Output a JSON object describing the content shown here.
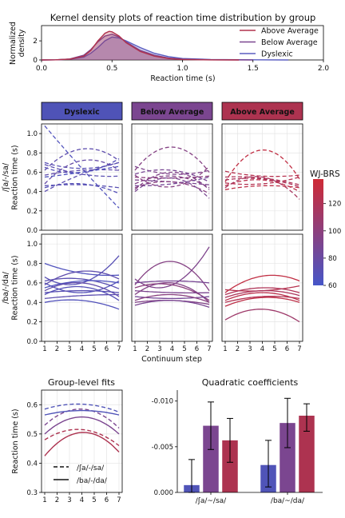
{
  "chart_data": [
    {
      "type": "area",
      "title": "Kernel density plots of reaction time distribution by group",
      "xlabel": "Reaction time (s)",
      "ylabel": "Normalized\ndensity",
      "xlim": [
        0.0,
        2.0
      ],
      "ylim": [
        0,
        3.6
      ],
      "xticks": [
        "0.0",
        "0.5",
        "1.0",
        "1.5",
        "2.0"
      ],
      "yticks": [
        "0",
        "2"
      ],
      "legend_position": "top-right",
      "series": [
        {
          "name": "Above Average",
          "color": "#b0324d",
          "points": [
            [
              0.0,
              0.0
            ],
            [
              0.1,
              0.02
            ],
            [
              0.2,
              0.08
            ],
            [
              0.3,
              0.4
            ],
            [
              0.35,
              1.0
            ],
            [
              0.4,
              2.0
            ],
            [
              0.45,
              2.8
            ],
            [
              0.48,
              3.0
            ],
            [
              0.5,
              2.95
            ],
            [
              0.55,
              2.5
            ],
            [
              0.6,
              1.8
            ],
            [
              0.7,
              0.9
            ],
            [
              0.8,
              0.4
            ],
            [
              0.9,
              0.15
            ],
            [
              1.0,
              0.05
            ],
            [
              1.2,
              0.01
            ],
            [
              1.4,
              0.0
            ]
          ]
        },
        {
          "name": "Below Average",
          "color": "#7b4690",
          "points": [
            [
              0.0,
              0.0
            ],
            [
              0.1,
              0.02
            ],
            [
              0.2,
              0.1
            ],
            [
              0.3,
              0.5
            ],
            [
              0.35,
              1.1
            ],
            [
              0.4,
              1.9
            ],
            [
              0.45,
              2.5
            ],
            [
              0.5,
              2.7
            ],
            [
              0.55,
              2.4
            ],
            [
              0.6,
              1.9
            ],
            [
              0.7,
              1.0
            ],
            [
              0.8,
              0.5
            ],
            [
              0.9,
              0.2
            ],
            [
              1.0,
              0.08
            ],
            [
              1.2,
              0.02
            ],
            [
              1.5,
              0.0
            ]
          ]
        },
        {
          "name": "Dyslexic",
          "color": "#5b5ec2",
          "points": [
            [
              0.0,
              0.0
            ],
            [
              0.1,
              0.02
            ],
            [
              0.2,
              0.08
            ],
            [
              0.3,
              0.3
            ],
            [
              0.35,
              0.7
            ],
            [
              0.4,
              1.3
            ],
            [
              0.45,
              2.0
            ],
            [
              0.5,
              2.4
            ],
            [
              0.55,
              2.3
            ],
            [
              0.6,
              2.0
            ],
            [
              0.7,
              1.3
            ],
            [
              0.8,
              0.7
            ],
            [
              0.9,
              0.35
            ],
            [
              1.0,
              0.15
            ],
            [
              1.2,
              0.05
            ],
            [
              1.5,
              0.02
            ],
            [
              1.75,
              0.0
            ]
          ]
        }
      ]
    },
    {
      "type": "line",
      "facet_headers": [
        "Dyslexic",
        "Below Average",
        "Above Average"
      ],
      "header_colors": [
        "#4f53b7",
        "#7b4690",
        "#ad3350"
      ],
      "row_labels": [
        "/ʃa/-/sa/\nReaction time (s)",
        "/ba/-/da/\nReaction time (s)"
      ],
      "xlabel": "Continuum step",
      "x": [
        1,
        2,
        3,
        4,
        5,
        6,
        7
      ],
      "ylim": [
        0.0,
        1.1
      ],
      "yticks": [
        "0.0",
        "0.2",
        "0.4",
        "0.6",
        "0.8",
        "1.0"
      ],
      "xticks": [
        "1",
        "2",
        "3",
        "4",
        "5",
        "6",
        "7"
      ],
      "colorbar": {
        "label": "WJ-BRS",
        "range": [
          60,
          138
        ],
        "ticks": [
          "60",
          "80",
          "100",
          "120"
        ],
        "low_color": "#4656c8",
        "high_color": "#cf2a35"
      },
      "panels": [
        {
          "row": "/ʃa/-/sa/",
          "group": "Dyslexic",
          "style": "dashed",
          "lines": [
            {
              "wj": 66,
              "y1": 1.08,
              "y4": 0.64,
              "y7": 0.23
            },
            {
              "wj": 70,
              "y1": 0.7,
              "y4": 0.64,
              "y7": 0.7
            },
            {
              "wj": 72,
              "y1": 0.68,
              "y4": 0.58,
              "y7": 0.56
            },
            {
              "wj": 68,
              "y1": 0.65,
              "y4": 0.6,
              "y7": 0.74
            },
            {
              "wj": 74,
              "y1": 0.62,
              "y4": 0.84,
              "y7": 0.72
            },
            {
              "wj": 76,
              "y1": 0.57,
              "y4": 0.62,
              "y7": 0.62
            },
            {
              "wj": 65,
              "y1": 0.55,
              "y4": 0.6,
              "y7": 0.66
            },
            {
              "wj": 78,
              "y1": 0.48,
              "y4": 0.72,
              "y7": 0.62
            },
            {
              "wj": 71,
              "y1": 0.46,
              "y4": 0.47,
              "y7": 0.44
            },
            {
              "wj": 69,
              "y1": 0.44,
              "y4": 0.48,
              "y7": 0.38
            },
            {
              "wj": 73,
              "y1": 0.4,
              "y4": 0.58,
              "y7": 0.7
            }
          ]
        },
        {
          "row": "/ʃa/-/sa/",
          "group": "Below Average",
          "style": "dashed",
          "lines": [
            {
              "wj": 96,
              "y1": 0.62,
              "y4": 0.86,
              "y7": 0.6
            },
            {
              "wj": 92,
              "y1": 0.66,
              "y4": 0.58,
              "y7": 0.62
            },
            {
              "wj": 88,
              "y1": 0.58,
              "y4": 0.62,
              "y7": 0.5
            },
            {
              "wj": 100,
              "y1": 0.55,
              "y4": 0.54,
              "y7": 0.56
            },
            {
              "wj": 90,
              "y1": 0.52,
              "y4": 0.5,
              "y7": 0.47
            },
            {
              "wj": 95,
              "y1": 0.48,
              "y4": 0.56,
              "y7": 0.44
            },
            {
              "wj": 86,
              "y1": 0.46,
              "y4": 0.48,
              "y7": 0.55
            },
            {
              "wj": 98,
              "y1": 0.44,
              "y4": 0.5,
              "y7": 0.38
            },
            {
              "wj": 94,
              "y1": 0.42,
              "y4": 0.6,
              "y7": 0.42
            },
            {
              "wj": 89,
              "y1": 0.4,
              "y4": 0.54,
              "y7": 0.33
            },
            {
              "wj": 97,
              "y1": 0.57,
              "y4": 0.45,
              "y7": 0.66
            }
          ]
        },
        {
          "row": "/ʃa/-/sa/",
          "group": "Above Average",
          "style": "dashed",
          "lines": [
            {
              "wj": 130,
              "y1": 0.5,
              "y4": 0.83,
              "y7": 0.53
            },
            {
              "wj": 124,
              "y1": 0.61,
              "y4": 0.56,
              "y7": 0.57
            },
            {
              "wj": 120,
              "y1": 0.55,
              "y4": 0.54,
              "y7": 0.47
            },
            {
              "wj": 118,
              "y1": 0.52,
              "y4": 0.53,
              "y7": 0.45
            },
            {
              "wj": 122,
              "y1": 0.49,
              "y4": 0.48,
              "y7": 0.55
            },
            {
              "wj": 126,
              "y1": 0.46,
              "y4": 0.52,
              "y7": 0.4
            },
            {
              "wj": 116,
              "y1": 0.44,
              "y4": 0.55,
              "y7": 0.32
            },
            {
              "wj": 128,
              "y1": 0.42,
              "y4": 0.46,
              "y7": 0.44
            }
          ]
        },
        {
          "row": "/ba/-/da/",
          "group": "Dyslexic",
          "style": "solid",
          "lines": [
            {
              "wj": 66,
              "y1": 0.8,
              "y4": 0.7,
              "y7": 0.68
            },
            {
              "wj": 70,
              "y1": 0.66,
              "y4": 0.6,
              "y7": 0.88
            },
            {
              "wj": 72,
              "y1": 0.62,
              "y4": 0.64,
              "y7": 0.54
            },
            {
              "wj": 68,
              "y1": 0.6,
              "y4": 0.5,
              "y7": 0.62
            },
            {
              "wj": 74,
              "y1": 0.58,
              "y4": 0.72,
              "y7": 0.64
            },
            {
              "wj": 65,
              "y1": 0.55,
              "y4": 0.62,
              "y7": 0.6
            },
            {
              "wj": 76,
              "y1": 0.52,
              "y4": 0.6,
              "y7": 0.46
            },
            {
              "wj": 71,
              "y1": 0.5,
              "y4": 0.52,
              "y7": 0.5
            },
            {
              "wj": 69,
              "y1": 0.48,
              "y4": 0.56,
              "y7": 0.42
            },
            {
              "wj": 73,
              "y1": 0.44,
              "y4": 0.47,
              "y7": 0.48
            },
            {
              "wj": 67,
              "y1": 0.4,
              "y4": 0.42,
              "y7": 0.33
            }
          ]
        },
        {
          "row": "/ba/-/da/",
          "group": "Below Average",
          "style": "solid",
          "lines": [
            {
              "wj": 96,
              "y1": 0.58,
              "y4": 0.82,
              "y7": 0.52
            },
            {
              "wj": 92,
              "y1": 0.64,
              "y4": 0.58,
              "y7": 0.97
            },
            {
              "wj": 88,
              "y1": 0.6,
              "y4": 0.62,
              "y7": 0.6
            },
            {
              "wj": 100,
              "y1": 0.55,
              "y4": 0.58,
              "y7": 0.42
            },
            {
              "wj": 90,
              "y1": 0.52,
              "y4": 0.5,
              "y7": 0.5
            },
            {
              "wj": 95,
              "y1": 0.48,
              "y4": 0.6,
              "y7": 0.4
            },
            {
              "wj": 86,
              "y1": 0.46,
              "y4": 0.44,
              "y7": 0.46
            },
            {
              "wj": 98,
              "y1": 0.42,
              "y4": 0.48,
              "y7": 0.4
            },
            {
              "wj": 94,
              "y1": 0.4,
              "y4": 0.42,
              "y7": 0.38
            },
            {
              "wj": 89,
              "y1": 0.37,
              "y4": 0.42,
              "y7": 0.35
            }
          ]
        },
        {
          "row": "/ba/-/da/",
          "group": "Above Average",
          "style": "solid",
          "lines": [
            {
              "wj": 130,
              "y1": 0.5,
              "y4": 0.67,
              "y7": 0.62
            },
            {
              "wj": 124,
              "y1": 0.53,
              "y4": 0.52,
              "y7": 0.57
            },
            {
              "wj": 120,
              "y1": 0.48,
              "y4": 0.55,
              "y7": 0.5
            },
            {
              "wj": 118,
              "y1": 0.45,
              "y4": 0.52,
              "y7": 0.47
            },
            {
              "wj": 126,
              "y1": 0.42,
              "y4": 0.5,
              "y7": 0.42
            },
            {
              "wj": 122,
              "y1": 0.4,
              "y4": 0.46,
              "y7": 0.44
            },
            {
              "wj": 128,
              "y1": 0.36,
              "y4": 0.45,
              "y7": 0.4
            },
            {
              "wj": 110,
              "y1": 0.22,
              "y4": 0.33,
              "y7": 0.2
            }
          ]
        }
      ]
    },
    {
      "type": "line",
      "title": "Group-level fits",
      "ylabel": "Reaction time (s)",
      "x": [
        1,
        2,
        3,
        4,
        5,
        6,
        7
      ],
      "ylim": [
        0.3,
        0.65
      ],
      "yticks": [
        "0.3",
        "0.4",
        "0.5",
        "0.6"
      ],
      "xticks": [
        "1",
        "2",
        "3",
        "4",
        "5",
        "6",
        "7"
      ],
      "legend": [
        "/ʃa/-/sa/",
        "/ba/-/da/"
      ],
      "legend_position": "bottom-left",
      "series": [
        {
          "group": "Dyslexic",
          "contrast": "/ʃa/-/sa/",
          "style": "dashed",
          "color": "#5054b8",
          "y1": 0.585,
          "y4": 0.602,
          "y7": 0.575
        },
        {
          "group": "Below Average",
          "contrast": "/ʃa/-/sa/",
          "style": "dashed",
          "color": "#7b4690",
          "y1": 0.53,
          "y4": 0.585,
          "y7": 0.52
        },
        {
          "group": "Above Average",
          "contrast": "/ʃa/-/sa/",
          "style": "dashed",
          "color": "#ad3350",
          "y1": 0.48,
          "y4": 0.515,
          "y7": 0.46
        },
        {
          "group": "Dyslexic",
          "contrast": "/ba/-/da/",
          "style": "solid",
          "color": "#5054b8",
          "y1": 0.565,
          "y4": 0.58,
          "y7": 0.565
        },
        {
          "group": "Below Average",
          "contrast": "/ba/-/da/",
          "style": "solid",
          "color": "#7b4690",
          "y1": 0.5,
          "y4": 0.558,
          "y7": 0.5
        },
        {
          "group": "Above Average",
          "contrast": "/ba/-/da/",
          "style": "solid",
          "color": "#ad3350",
          "y1": 0.425,
          "y4": 0.505,
          "y7": 0.438
        }
      ]
    },
    {
      "type": "bar",
      "title": "Quadratic coefficients",
      "categories": [
        "/ʃa/~/sa/",
        "/ba/~/da/"
      ],
      "ylim": [
        0.0,
        -0.0112
      ],
      "yticks": [
        "0.000",
        "-0.005",
        "-0.010"
      ],
      "series": [
        {
          "group": "Dyslexic",
          "color": "#5054b8",
          "values": [
            -0.0008,
            -0.003
          ],
          "err_low": [
            0.0,
            -0.0006
          ],
          "err_high": [
            -0.0036,
            -0.0057
          ]
        },
        {
          "group": "Below Average",
          "color": "#7b4690",
          "values": [
            -0.0073,
            -0.0076
          ],
          "err_low": [
            -0.0047,
            -0.0049
          ],
          "err_high": [
            -0.0099,
            -0.0103
          ]
        },
        {
          "group": "Above Average",
          "color": "#ad3350",
          "values": [
            -0.0057,
            -0.0084
          ],
          "err_low": [
            -0.0033,
            -0.0067
          ],
          "err_high": [
            -0.0081,
            -0.0097
          ]
        }
      ]
    }
  ]
}
